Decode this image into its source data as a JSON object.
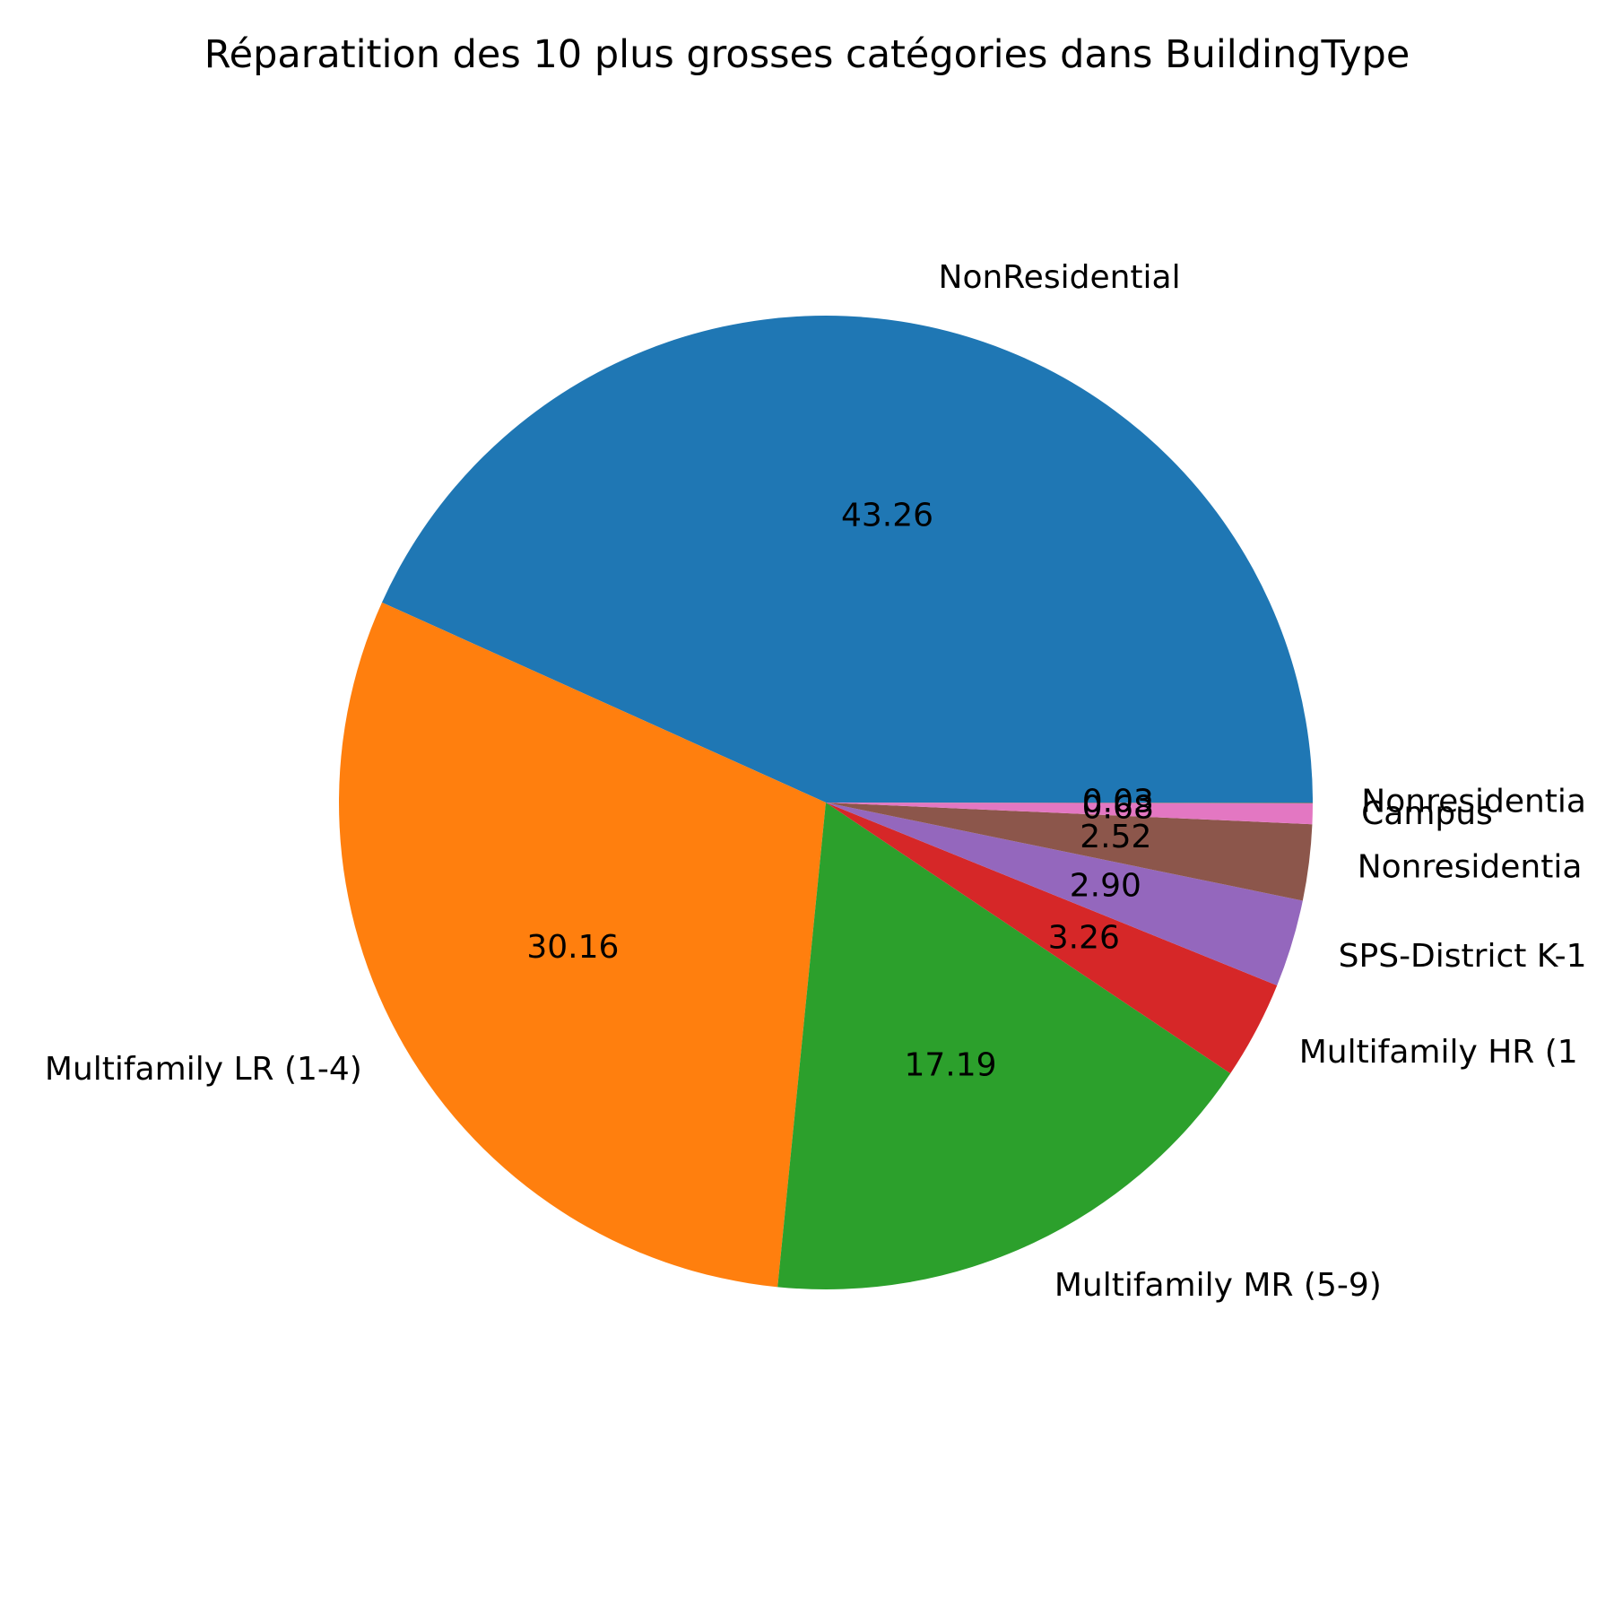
{
  "chart_data": {
    "type": "pie",
    "title": "Réparatition des 10 plus grosses catégories dans BuildingType",
    "start_angle_deg": 0,
    "direction": "counterclockwise",
    "slices": [
      {
        "label": "NonResidential",
        "value": 43.26,
        "value_label": "43.26",
        "color": "#1f77b4"
      },
      {
        "label": "Multifamily LR (1-4)",
        "value": 30.16,
        "value_label": "30.16",
        "color": "#ff7f0e"
      },
      {
        "label": "Multifamily MR (5-9)",
        "value": 17.19,
        "value_label": "17.19",
        "color": "#2ca02c"
      },
      {
        "label": "Multifamily HR (1",
        "value": 3.26,
        "value_label": "3.26",
        "color": "#d62728"
      },
      {
        "label": "SPS-District K-1",
        "value": 2.9,
        "value_label": "2.90",
        "color": "#9467bd"
      },
      {
        "label": "Nonresidentia",
        "value": 2.52,
        "value_label": "2.52",
        "color": "#8c564b"
      },
      {
        "label": "Campus",
        "value": 0.68,
        "value_label": "0.68",
        "color": "#e377c2"
      },
      {
        "label": "Nonresidentia",
        "value": 0.03,
        "value_label": "0.03",
        "color": "#7f7f7f"
      }
    ]
  }
}
